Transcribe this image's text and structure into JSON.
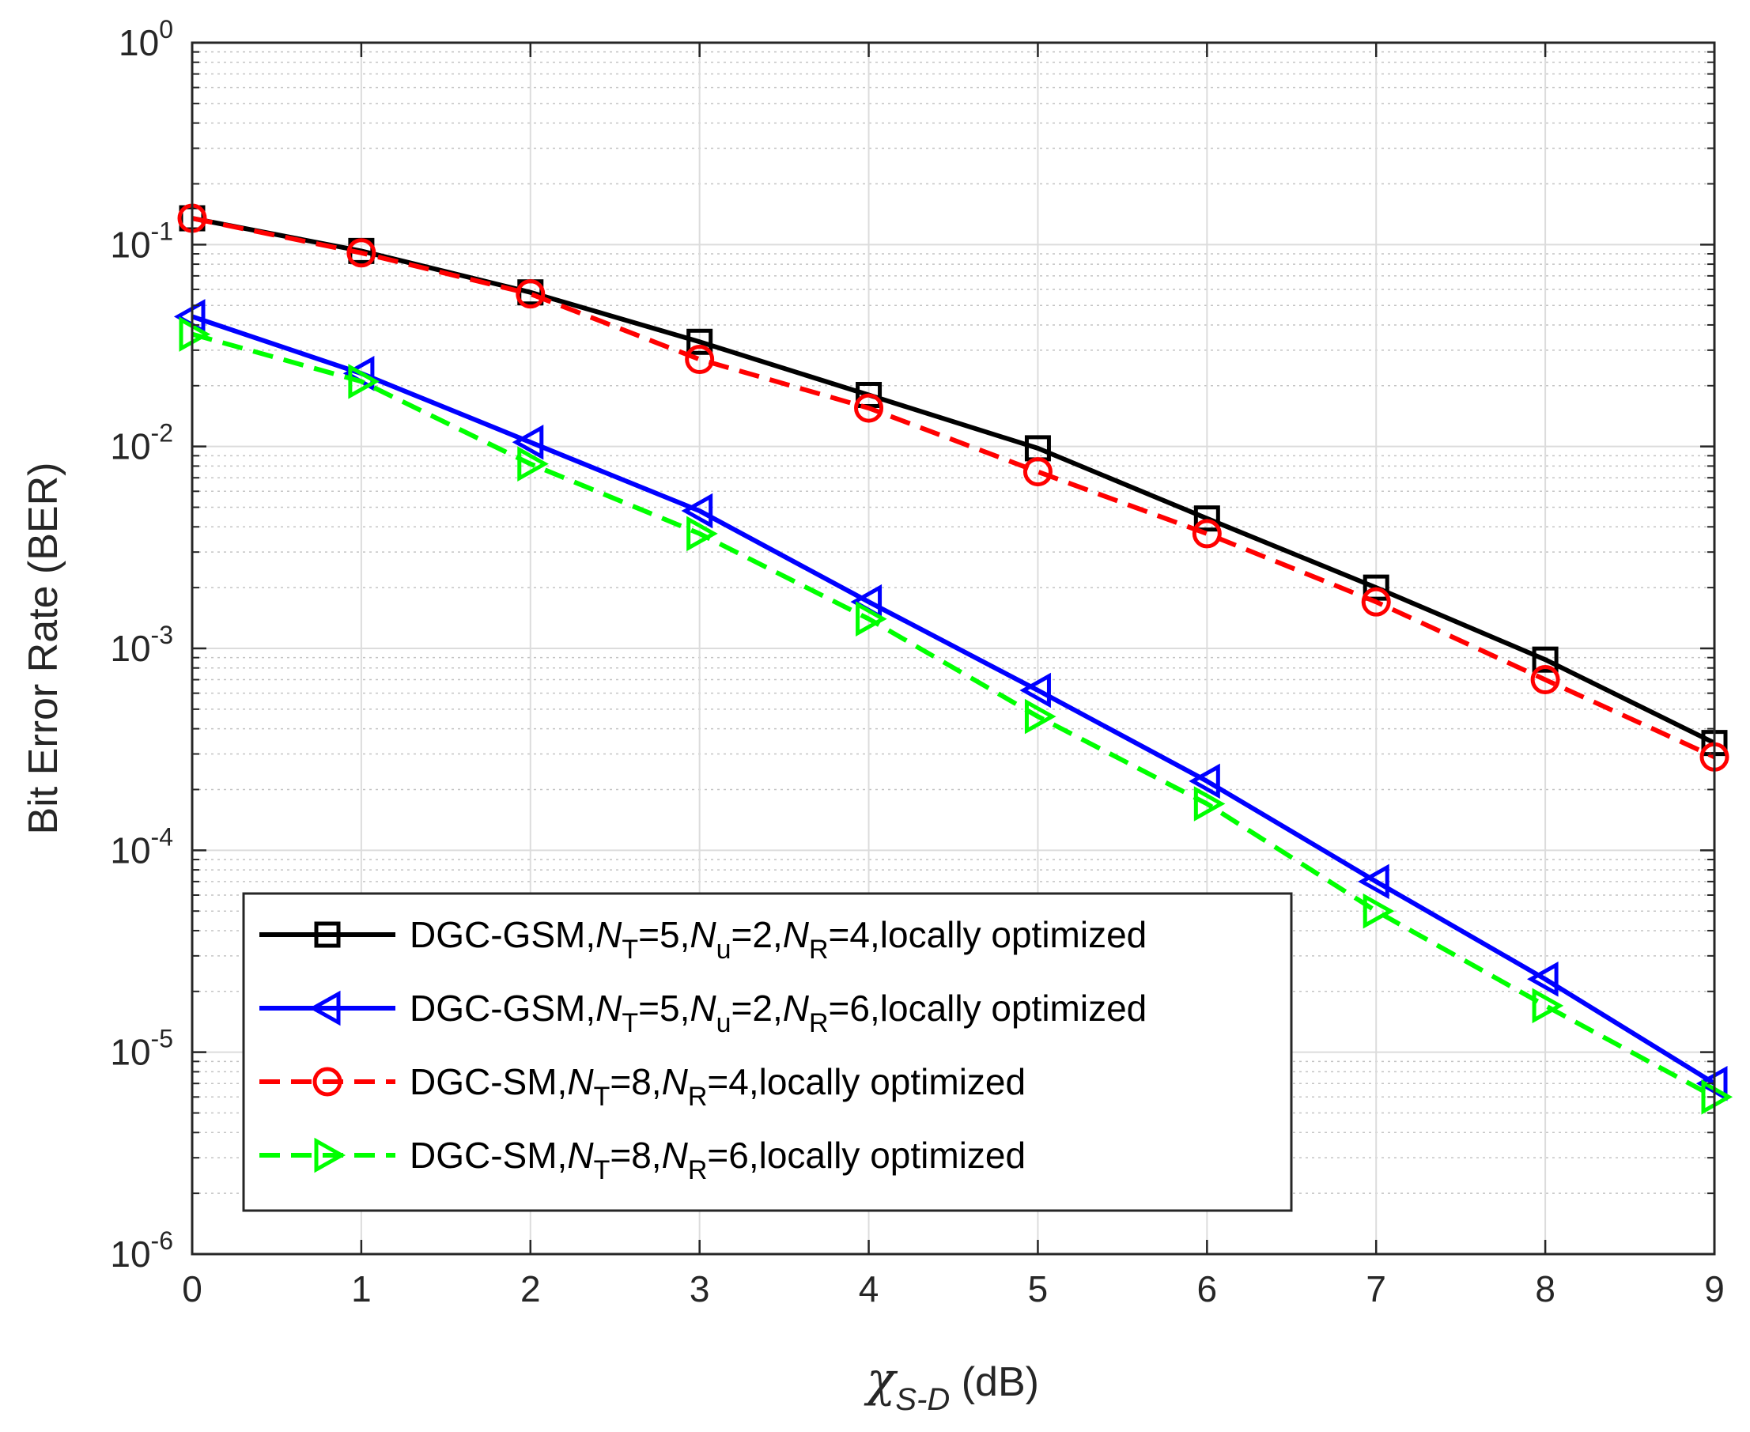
{
  "chart_data": {
    "type": "line",
    "title": "",
    "xlabel": {
      "symbol": "χ",
      "subscript": "S-D",
      "suffix": " (dB)"
    },
    "ylabel": "Bit Error Rate (BER)",
    "xlim": [
      0,
      9
    ],
    "ylim": [
      1e-06,
      1
    ],
    "yscale": "log",
    "grid": true,
    "x_ticks": [
      {
        "value": 0,
        "label": "0"
      },
      {
        "value": 1,
        "label": "1"
      },
      {
        "value": 2,
        "label": "2"
      },
      {
        "value": 3,
        "label": "3"
      },
      {
        "value": 4,
        "label": "4"
      },
      {
        "value": 5,
        "label": "5"
      },
      {
        "value": 6,
        "label": "6"
      },
      {
        "value": 7,
        "label": "7"
      },
      {
        "value": 8,
        "label": "8"
      },
      {
        "value": 9,
        "label": "9"
      }
    ],
    "y_ticks": [
      {
        "value": 1e-06,
        "base": "10",
        "exp": "-6"
      },
      {
        "value": 1e-05,
        "base": "10",
        "exp": "-5"
      },
      {
        "value": 0.0001,
        "base": "10",
        "exp": "-4"
      },
      {
        "value": 0.001,
        "base": "10",
        "exp": "-3"
      },
      {
        "value": 0.01,
        "base": "10",
        "exp": "-2"
      },
      {
        "value": 0.1,
        "base": "10",
        "exp": "-1"
      },
      {
        "value": 1,
        "base": "10",
        "exp": "0"
      }
    ],
    "x": [
      0,
      1,
      2,
      3,
      4,
      5,
      6,
      7,
      8,
      9
    ],
    "series": [
      {
        "name": "DGC-GSM,NT=5,Nu=2,NR=4,locally optimized",
        "legend_parts": [
          {
            "t": "DGC-GSM,"
          },
          {
            "t": "N",
            "style": "italic"
          },
          {
            "t": "T",
            "style": "sub"
          },
          {
            "t": "=5,"
          },
          {
            "t": "N",
            "style": "italic"
          },
          {
            "t": "u",
            "style": "sub"
          },
          {
            "t": "=2,"
          },
          {
            "t": "N",
            "style": "italic"
          },
          {
            "t": "R",
            "style": "sub"
          },
          {
            "t": "=4,locally optimized"
          }
        ],
        "color": "#000000",
        "dash": "solid",
        "marker": "square",
        "values": [
          0.135,
          0.093,
          0.058,
          0.033,
          0.018,
          0.0098,
          0.0044,
          0.002,
          0.00088,
          0.00034
        ]
      },
      {
        "name": "DGC-GSM,NT=5,Nu=2,NR=6,locally optimized",
        "legend_parts": [
          {
            "t": "DGC-GSM,"
          },
          {
            "t": "N",
            "style": "italic"
          },
          {
            "t": "T",
            "style": "sub"
          },
          {
            "t": "=5,"
          },
          {
            "t": "N",
            "style": "italic"
          },
          {
            "t": "u",
            "style": "sub"
          },
          {
            "t": "=2,"
          },
          {
            "t": "N",
            "style": "italic"
          },
          {
            "t": "R",
            "style": "sub"
          },
          {
            "t": "=6,locally optimized"
          }
        ],
        "color": "#0000ff",
        "dash": "solid",
        "marker": "triangle-left",
        "values": [
          0.044,
          0.023,
          0.0105,
          0.0048,
          0.0017,
          0.00062,
          0.00022,
          7e-05,
          2.3e-05,
          7e-06
        ]
      },
      {
        "name": "DGC-SM,NT=8,NR=4,locally optimized",
        "legend_parts": [
          {
            "t": "DGC-SM,"
          },
          {
            "t": "N",
            "style": "italic"
          },
          {
            "t": "T",
            "style": "sub"
          },
          {
            "t": "=8,"
          },
          {
            "t": "N",
            "style": "italic"
          },
          {
            "t": "R",
            "style": "sub"
          },
          {
            "t": "=4,locally optimized"
          }
        ],
        "color": "#ff0000",
        "dash": "dashed",
        "marker": "circle",
        "values": [
          0.135,
          0.091,
          0.057,
          0.027,
          0.0155,
          0.0075,
          0.0037,
          0.0017,
          0.0007,
          0.00029
        ]
      },
      {
        "name": "DGC-SM,NT=8,NR=6,locally optimized",
        "legend_parts": [
          {
            "t": "DGC-SM,"
          },
          {
            "t": "N",
            "style": "italic"
          },
          {
            "t": "T",
            "style": "sub"
          },
          {
            "t": "=8,"
          },
          {
            "t": "N",
            "style": "italic"
          },
          {
            "t": "R",
            "style": "sub"
          },
          {
            "t": "=6,locally optimized"
          }
        ],
        "color": "#00ff00",
        "dash": "dashed",
        "marker": "triangle-right",
        "values": [
          0.036,
          0.021,
          0.0082,
          0.0037,
          0.0014,
          0.00046,
          0.00017,
          5e-05,
          1.7e-05,
          6e-06
        ]
      }
    ],
    "legend_position": "bottom-left"
  }
}
